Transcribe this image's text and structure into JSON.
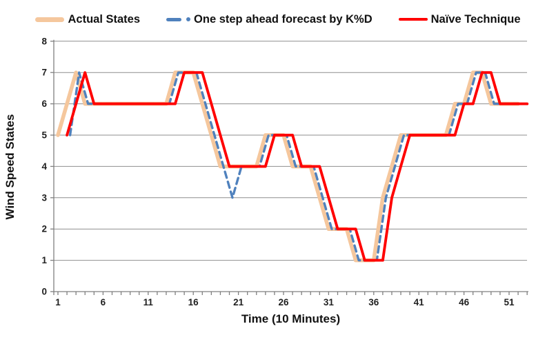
{
  "chart_data": {
    "type": "line",
    "title": "",
    "xlabel": "Time (10 Minutes)",
    "ylabel": "Wind Speed States",
    "xlim": [
      0.5,
      53.5
    ],
    "ylim": [
      0,
      8
    ],
    "x_major_ticks": [
      1,
      6,
      11,
      16,
      21,
      26,
      31,
      36,
      41,
      46,
      51
    ],
    "y_ticks": [
      0,
      1,
      2,
      3,
      4,
      5,
      6,
      7,
      8
    ],
    "grid": "horizontal-only",
    "legend_position": "top-center",
    "background": "#ffffff",
    "gridline_color": "#8e8e8e",
    "axis_color": "#7f7f7f",
    "x": [
      1,
      2,
      3,
      4,
      5,
      6,
      7,
      8,
      9,
      10,
      11,
      12,
      13,
      14,
      15,
      16,
      17,
      18,
      19,
      20,
      21,
      22,
      23,
      24,
      25,
      26,
      27,
      28,
      29,
      30,
      31,
      32,
      33,
      34,
      35,
      36,
      37,
      38,
      39,
      40,
      41,
      42,
      43,
      44,
      45,
      46,
      47,
      48,
      49,
      50,
      51,
      52,
      53
    ],
    "series": [
      {
        "name": "Actual States",
        "color": "#F5C79D",
        "style": "solid-thick",
        "values": [
          5,
          6,
          7,
          6,
          6,
          6,
          6,
          6,
          6,
          6,
          6,
          6,
          6,
          7,
          7,
          7,
          6,
          5,
          4,
          4,
          4,
          4,
          4,
          5,
          5,
          5,
          4,
          4,
          4,
          3,
          2,
          2,
          2,
          1,
          1,
          1,
          3,
          4,
          5,
          5,
          5,
          5,
          5,
          5,
          6,
          6,
          7,
          7,
          6,
          6,
          6,
          6,
          null
        ]
      },
      {
        "name": "One step ahead forecast by K%D",
        "color": "#4F81BD",
        "style": "dashed",
        "values": [
          null,
          5,
          7,
          6,
          6,
          6,
          6,
          6,
          6,
          6,
          6,
          6,
          6,
          7,
          7,
          7,
          6,
          5,
          4,
          3,
          4,
          4,
          4,
          5,
          5,
          5,
          4,
          4,
          4,
          3,
          2,
          2,
          2,
          1,
          1,
          1,
          3,
          4,
          5,
          5,
          5,
          5,
          5,
          5,
          6,
          6,
          7,
          7,
          6,
          6,
          6,
          6,
          null
        ]
      },
      {
        "name": "Naïve Technique",
        "color": "#FF0000",
        "style": "solid",
        "values": [
          null,
          5,
          6,
          7,
          6,
          6,
          6,
          6,
          6,
          6,
          6,
          6,
          6,
          6,
          7,
          7,
          7,
          6,
          5,
          4,
          4,
          4,
          4,
          4,
          5,
          5,
          5,
          4,
          4,
          4,
          3,
          2,
          2,
          2,
          1,
          1,
          1,
          3,
          4,
          5,
          5,
          5,
          5,
          5,
          5,
          6,
          6,
          7,
          7,
          6,
          6,
          6,
          6
        ]
      }
    ]
  }
}
